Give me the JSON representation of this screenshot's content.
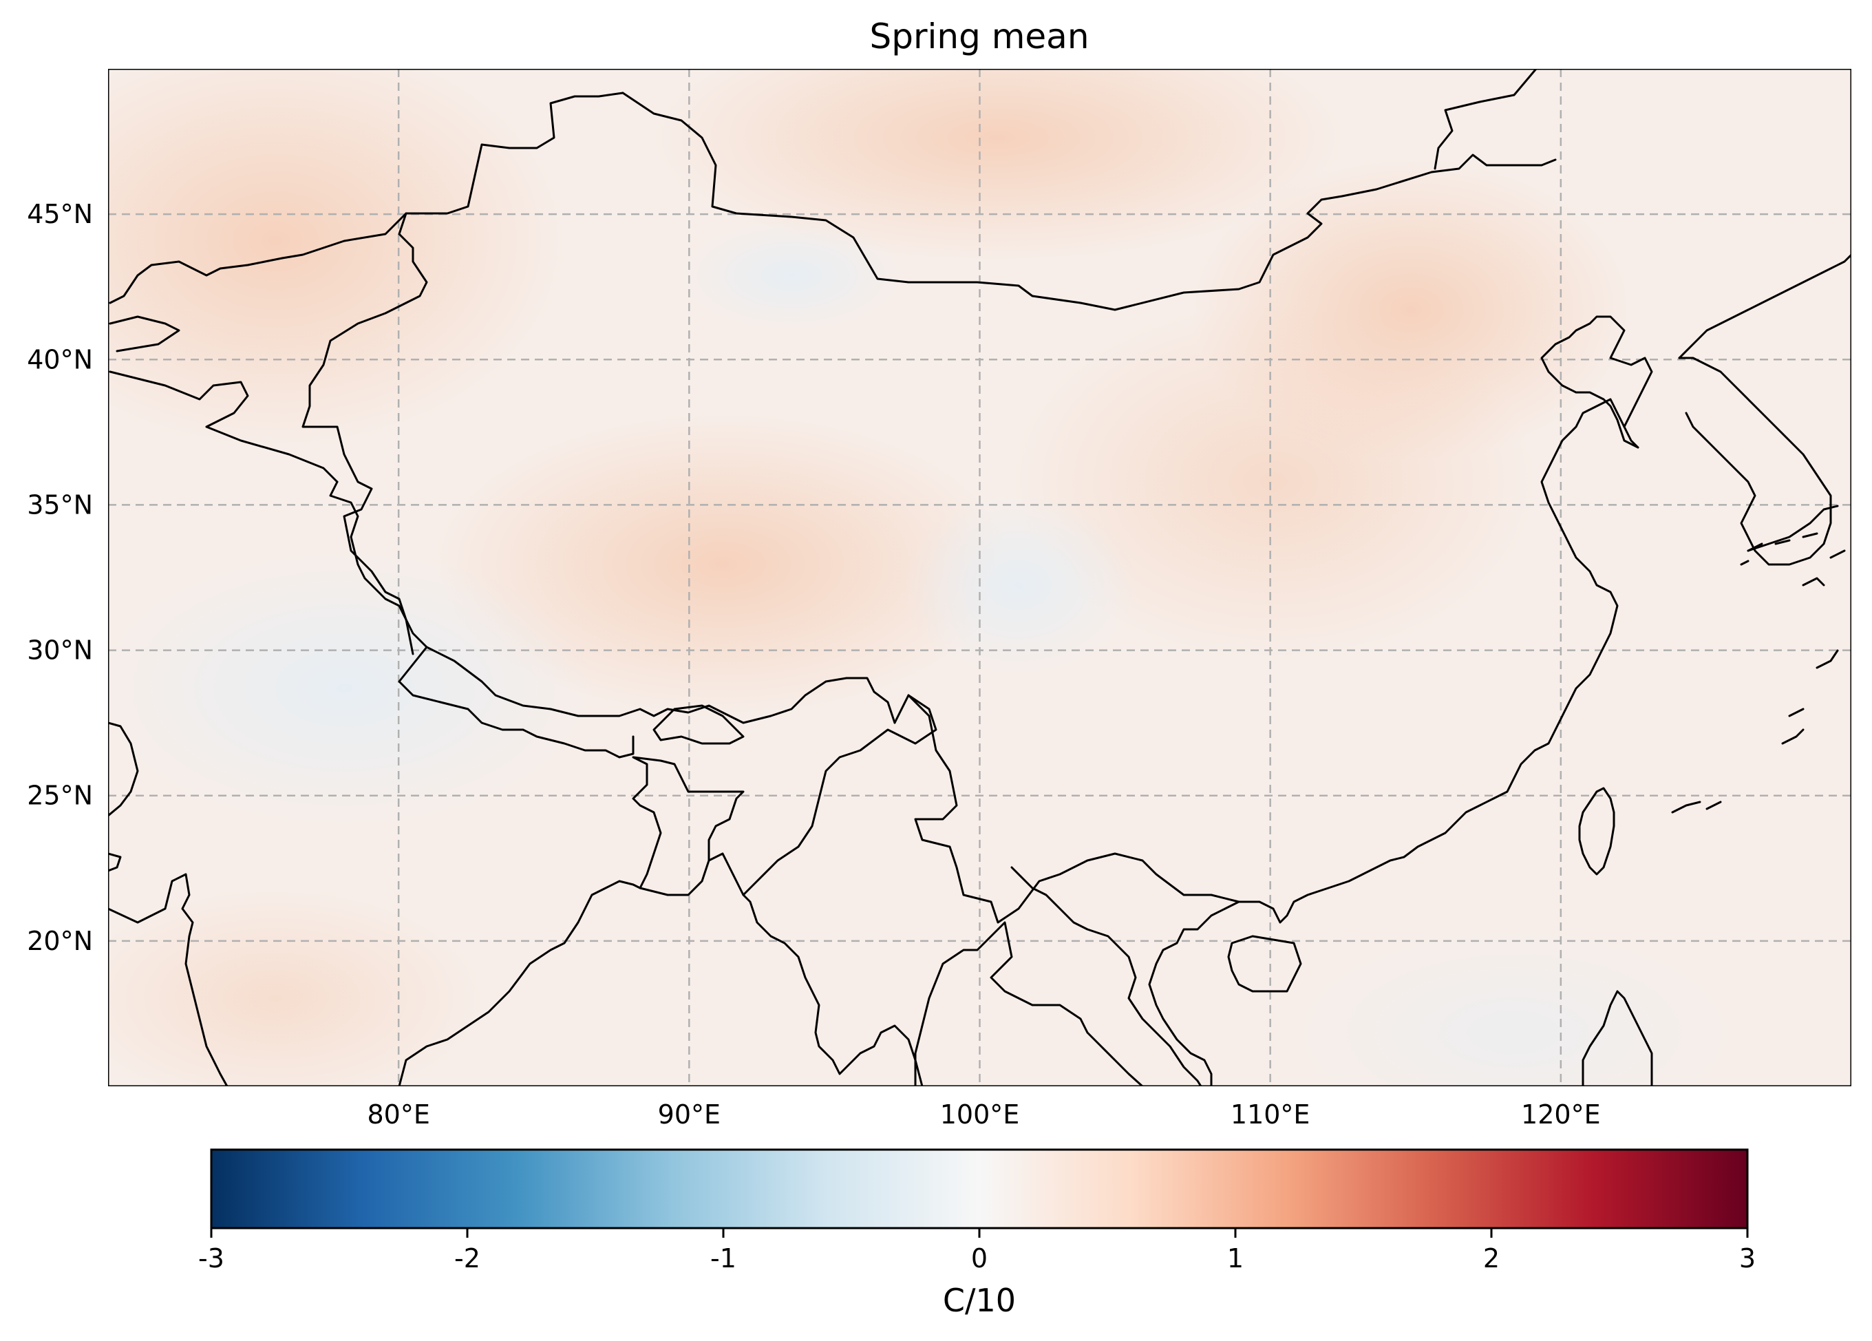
{
  "title": "Spring mean",
  "map": {
    "lon_range": [
      70,
      130
    ],
    "lat_range": [
      15,
      50
    ],
    "lon_ticks": [
      {
        "value": 80,
        "label": "80°E"
      },
      {
        "value": 90,
        "label": "90°E"
      },
      {
        "value": 100,
        "label": "100°E"
      },
      {
        "value": 110,
        "label": "110°E"
      },
      {
        "value": 120,
        "label": "120°E"
      }
    ],
    "lat_ticks": [
      {
        "value": 20,
        "label": "20°N"
      },
      {
        "value": 25,
        "label": "25°N"
      },
      {
        "value": 30,
        "label": "30°N"
      },
      {
        "value": 35,
        "label": "35°N"
      },
      {
        "value": 40,
        "label": "40°N"
      },
      {
        "value": 45,
        "label": "45°N"
      }
    ],
    "gridlines": true,
    "field_color_base": "#f7eee9",
    "coastline_color": "#000000",
    "gridline_color": "#b0b0b0"
  },
  "colorbar": {
    "label": "C/10",
    "range": [
      -3,
      3
    ],
    "ticks": [
      {
        "value": -3,
        "label": "-3"
      },
      {
        "value": -2,
        "label": "-2"
      },
      {
        "value": -1,
        "label": "-1"
      },
      {
        "value": 0,
        "label": "0"
      },
      {
        "value": 1,
        "label": "1"
      },
      {
        "value": 2,
        "label": "2"
      },
      {
        "value": 3,
        "label": "3"
      }
    ],
    "colormap": "RdBu_r",
    "colors": [
      "#053061",
      "#2166ac",
      "#4393c3",
      "#92c5de",
      "#d1e5f0",
      "#f7f7f7",
      "#fddbc7",
      "#f4a582",
      "#d6604d",
      "#b2182b",
      "#67001f"
    ]
  }
}
